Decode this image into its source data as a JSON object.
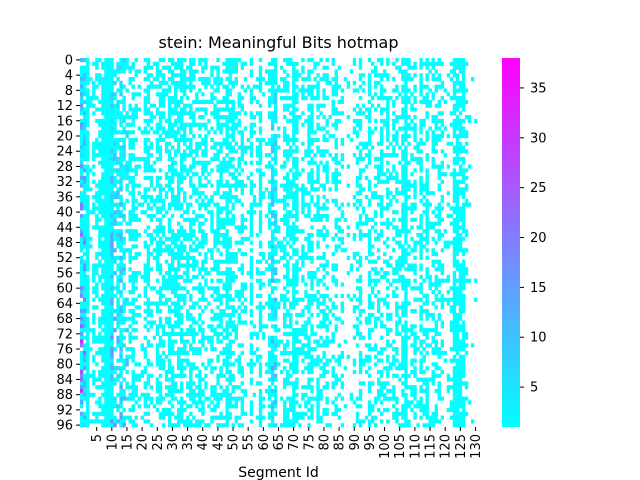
{
  "chart_data": {
    "type": "heatmap",
    "title": "stein: Meaningful Bits hotmap",
    "xlabel": "Segment Id",
    "ylabel": "",
    "x_range": [
      0,
      130
    ],
    "y_range": [
      0,
      97
    ],
    "x_ticks": [
      5,
      10,
      15,
      20,
      25,
      30,
      35,
      40,
      45,
      50,
      55,
      60,
      65,
      70,
      75,
      80,
      85,
      90,
      95,
      100,
      105,
      110,
      115,
      120,
      125,
      130
    ],
    "y_ticks": [
      0,
      4,
      8,
      12,
      16,
      20,
      24,
      28,
      32,
      36,
      40,
      44,
      48,
      52,
      56,
      60,
      64,
      68,
      72,
      76,
      80,
      84,
      88,
      92,
      96
    ],
    "colorbar": {
      "min": 1,
      "max": 38,
      "ticks": [
        5,
        10,
        15,
        20,
        25,
        30,
        35
      ],
      "colors": [
        "#00ffff",
        "#ff00ff"
      ]
    },
    "colormap": "cool",
    "empty_cell_color": "#ffffff",
    "column_fill_density": [
      0.95,
      0.85,
      0.9,
      0.2,
      0.5,
      0.35,
      0.6,
      0.75,
      1.0,
      1.0,
      1.0,
      0.45,
      0.6,
      0.8,
      0.65,
      0.3,
      0.55,
      0.65,
      0.5,
      0.2,
      0.15,
      0.55,
      0.65,
      0.3,
      0.2,
      0.6,
      0.7,
      0.5,
      0.4,
      0.7,
      0.65,
      0.5,
      0.7,
      0.7,
      0.55,
      0.4,
      0.6,
      0.5,
      0.45,
      0.6,
      0.6,
      0.5,
      0.25,
      0.5,
      0.4,
      0.65,
      0.45,
      0.45,
      0.8,
      0.7,
      0.5,
      0.45,
      0.35,
      0.45,
      0.2,
      0.1,
      0.6,
      0.2,
      0.25,
      0.55,
      0.15,
      0.15,
      0.45,
      0.85,
      0.75,
      0.3,
      0.2,
      0.7,
      0.7,
      0.45,
      0.8,
      0.75,
      0.25,
      0.5,
      0.3,
      0.55,
      0.6,
      0.25,
      0.55,
      0.35,
      0.5,
      0.55,
      0.15,
      0.3,
      0.55,
      0.3,
      0.25,
      0.1,
      0.1,
      0.1,
      0.3,
      0.35,
      0.5,
      0.2,
      0.15,
      0.65,
      0.3,
      0.45,
      0.3,
      0.5,
      0.25,
      0.55,
      0.2,
      0.4,
      0.5,
      0.3,
      0.7,
      0.85,
      0.35,
      0.35,
      0.55,
      0.2,
      0.65,
      0.35,
      0.65,
      0.2,
      0.5,
      0.4,
      0.55,
      0.4,
      0.2,
      0.15,
      0.3,
      0.9,
      0.9,
      0.7,
      0.8,
      0.25,
      0.05,
      0.05,
      0.02
    ],
    "high_value_columns": {
      "0": 38,
      "1": 28,
      "10": 20,
      "11": 18,
      "12": 15,
      "13": 17,
      "14": 16,
      "15": 12,
      "63": 18,
      "64": 16
    }
  }
}
